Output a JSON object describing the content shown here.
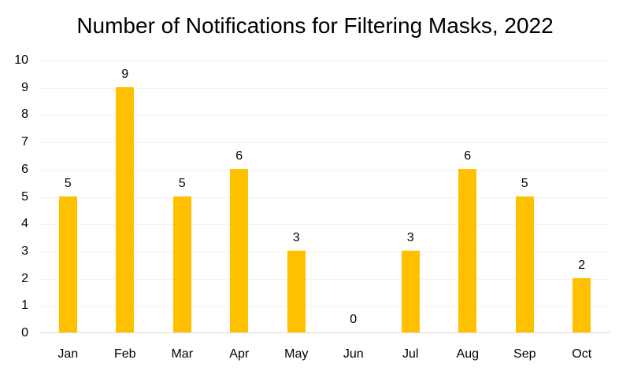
{
  "chart_data": {
    "type": "bar",
    "title": "Number of Notifications for Filtering Masks, 2022",
    "categories": [
      "Jan",
      "Feb",
      "Mar",
      "Apr",
      "May",
      "Jun",
      "Jul",
      "Aug",
      "Sep",
      "Oct"
    ],
    "values": [
      5,
      9,
      5,
      6,
      3,
      0,
      3,
      6,
      5,
      2
    ],
    "xlabel": "",
    "ylabel": "",
    "ylim": [
      0,
      10
    ],
    "yticks": [
      0,
      1,
      2,
      3,
      4,
      5,
      6,
      7,
      8,
      9,
      10
    ],
    "data_labels": true,
    "legend": "none",
    "grid": "horizontal-faint",
    "colors": {
      "bar": "#FFC000",
      "gridline": "#F2F2F2",
      "axis_line": "#D9D9D9",
      "text": "#000000",
      "background": "#FFFFFF"
    }
  }
}
